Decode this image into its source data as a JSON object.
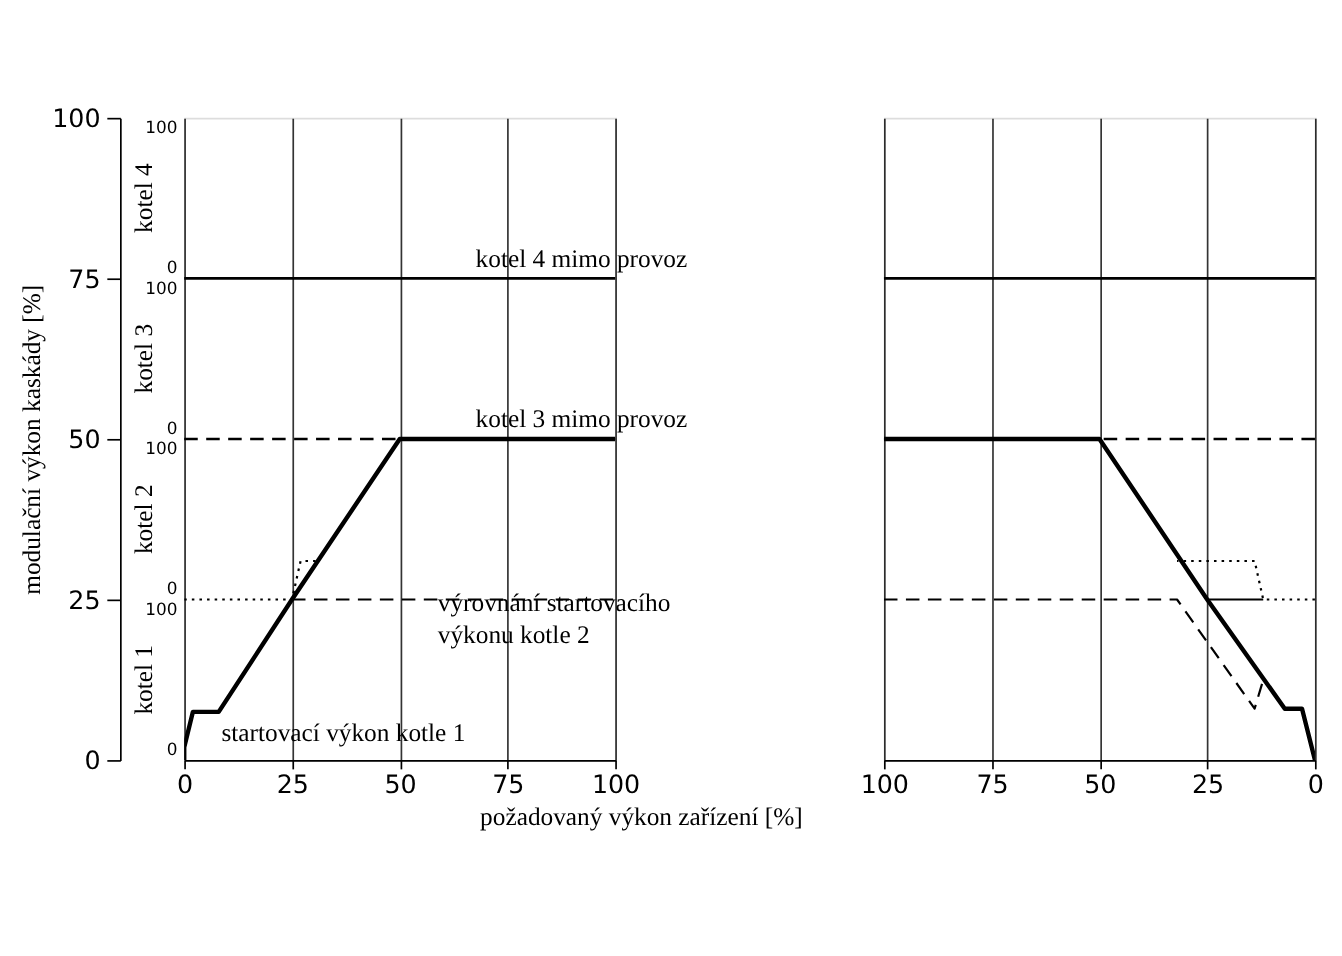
{
  "chart_data": [
    {
      "type": "line",
      "xlabel": "požadovaný výkon zařízení [%]",
      "ylabel": "modulační výkon kaskády [%]",
      "xlim": [
        0,
        100
      ],
      "xticks": [
        0,
        25,
        50,
        75,
        100
      ],
      "ylim": [
        0,
        100
      ],
      "yticks": [
        0,
        25,
        50,
        75,
        100
      ],
      "grid": "x",
      "series": [
        {
          "color": "#000000",
          "line_style": "solid",
          "x": [
            0,
            0,
            2,
            8,
            25,
            50,
            100
          ],
          "values": [
            0,
            2,
            7.5,
            7.5,
            25,
            50,
            50
          ]
        },
        {
          "color": "#000000",
          "line_style": "dotted",
          "x": [
            0,
            25,
            27,
            31
          ],
          "values": [
            25,
            25,
            31,
            31
          ]
        },
        {
          "color": "#000000",
          "line_style": "dashed",
          "x": [
            25,
            100
          ],
          "values": [
            25,
            25
          ]
        }
      ],
      "ref_lines": [
        {
          "axis": "y",
          "value": 75,
          "label": "kotel 4 mimo provoz",
          "line_style": "solid"
        },
        {
          "axis": "y",
          "value": 50,
          "label": "kotel 3 mimo provoz",
          "line_style": "dashed"
        }
      ],
      "annotations": [
        "kotel 1",
        "kotel 2",
        "kotel 3",
        "kotel 4",
        "výrovnání startovacího\nvýkonu kotle 2",
        "startovací výkon kotle 1",
        "100",
        "0",
        "100",
        "0",
        "100",
        "0",
        "100",
        "0"
      ]
    },
    {
      "type": "line",
      "xlim": [
        100,
        0
      ],
      "xticks": [
        100,
        75,
        50,
        25,
        0
      ],
      "ylim": [
        0,
        100
      ],
      "tick_labels": "x",
      "grid": "x",
      "series": [
        {
          "color": "#000000",
          "line_style": "solid",
          "x": [
            100,
            50,
            25,
            7,
            3,
            0
          ],
          "values": [
            50,
            50,
            25,
            8,
            8,
            0
          ]
        },
        {
          "color": "#000000",
          "line_style": "dashed",
          "x": [
            100,
            32,
            14,
            12
          ],
          "values": [
            25,
            25,
            8,
            12.5
          ]
        },
        {
          "color": "#000000",
          "line_style": "dotted",
          "x": [
            0,
            12,
            14,
            32
          ],
          "values": [
            25,
            25,
            31,
            31
          ]
        },
        {
          "color": "#000000",
          "line_style": "solid",
          "x": [
            25,
            12
          ],
          "values": [
            25,
            25
          ]
        }
      ],
      "ref_lines": [
        {
          "axis": "y",
          "value": 75,
          "line_style": "solid"
        },
        {
          "axis": "y",
          "value": 50,
          "line_style": "dashed"
        }
      ]
    }
  ]
}
